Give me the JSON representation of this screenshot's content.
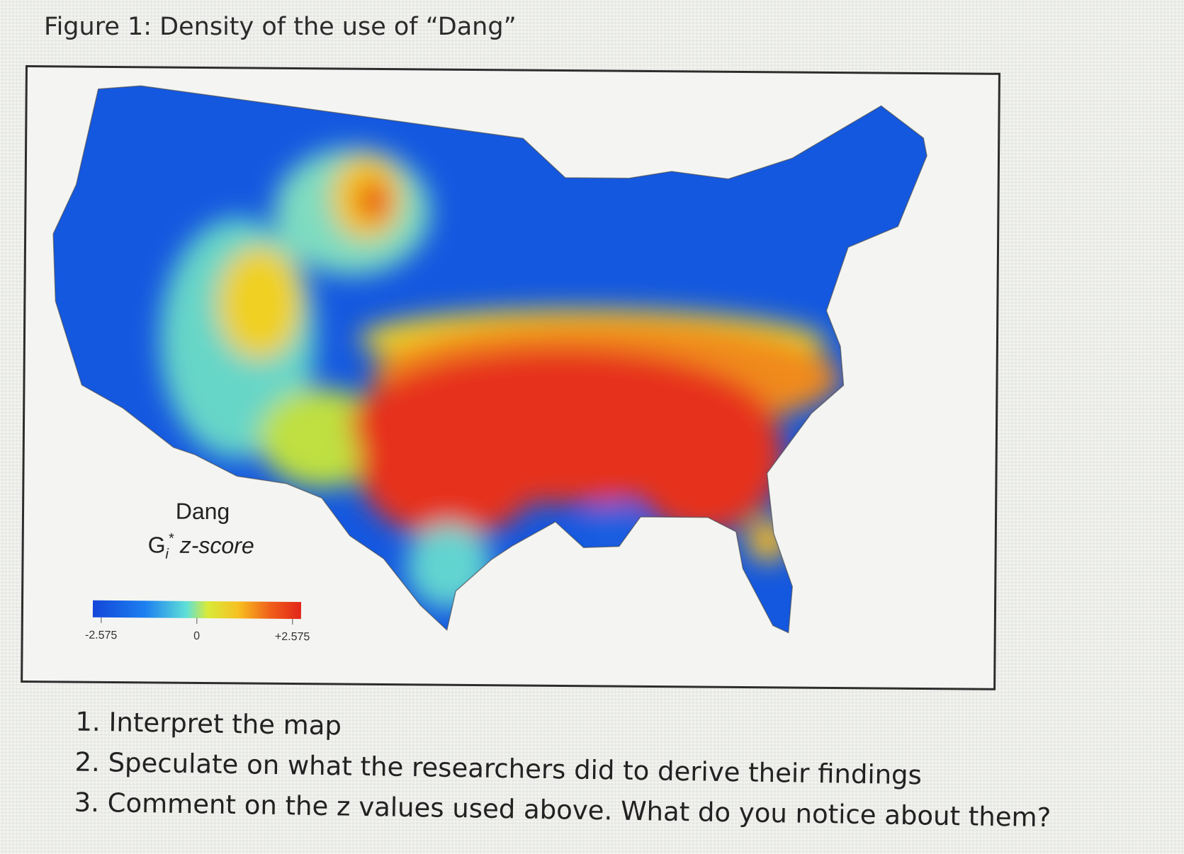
{
  "header": {
    "title": "Figure 1: Density of the use of “Dang”"
  },
  "figure": {
    "legend": {
      "title": "Dang",
      "subtitle": [
        "G",
        "i",
        "*",
        "z-score"
      ],
      "ticks": [
        "-2.575",
        "0",
        "+2.575"
      ]
    }
  },
  "questions": [
    "Interpret the map",
    "Speculate on what the researchers did to derive their findings",
    "Comment on the z values used above. What do you notice about them?"
  ]
}
